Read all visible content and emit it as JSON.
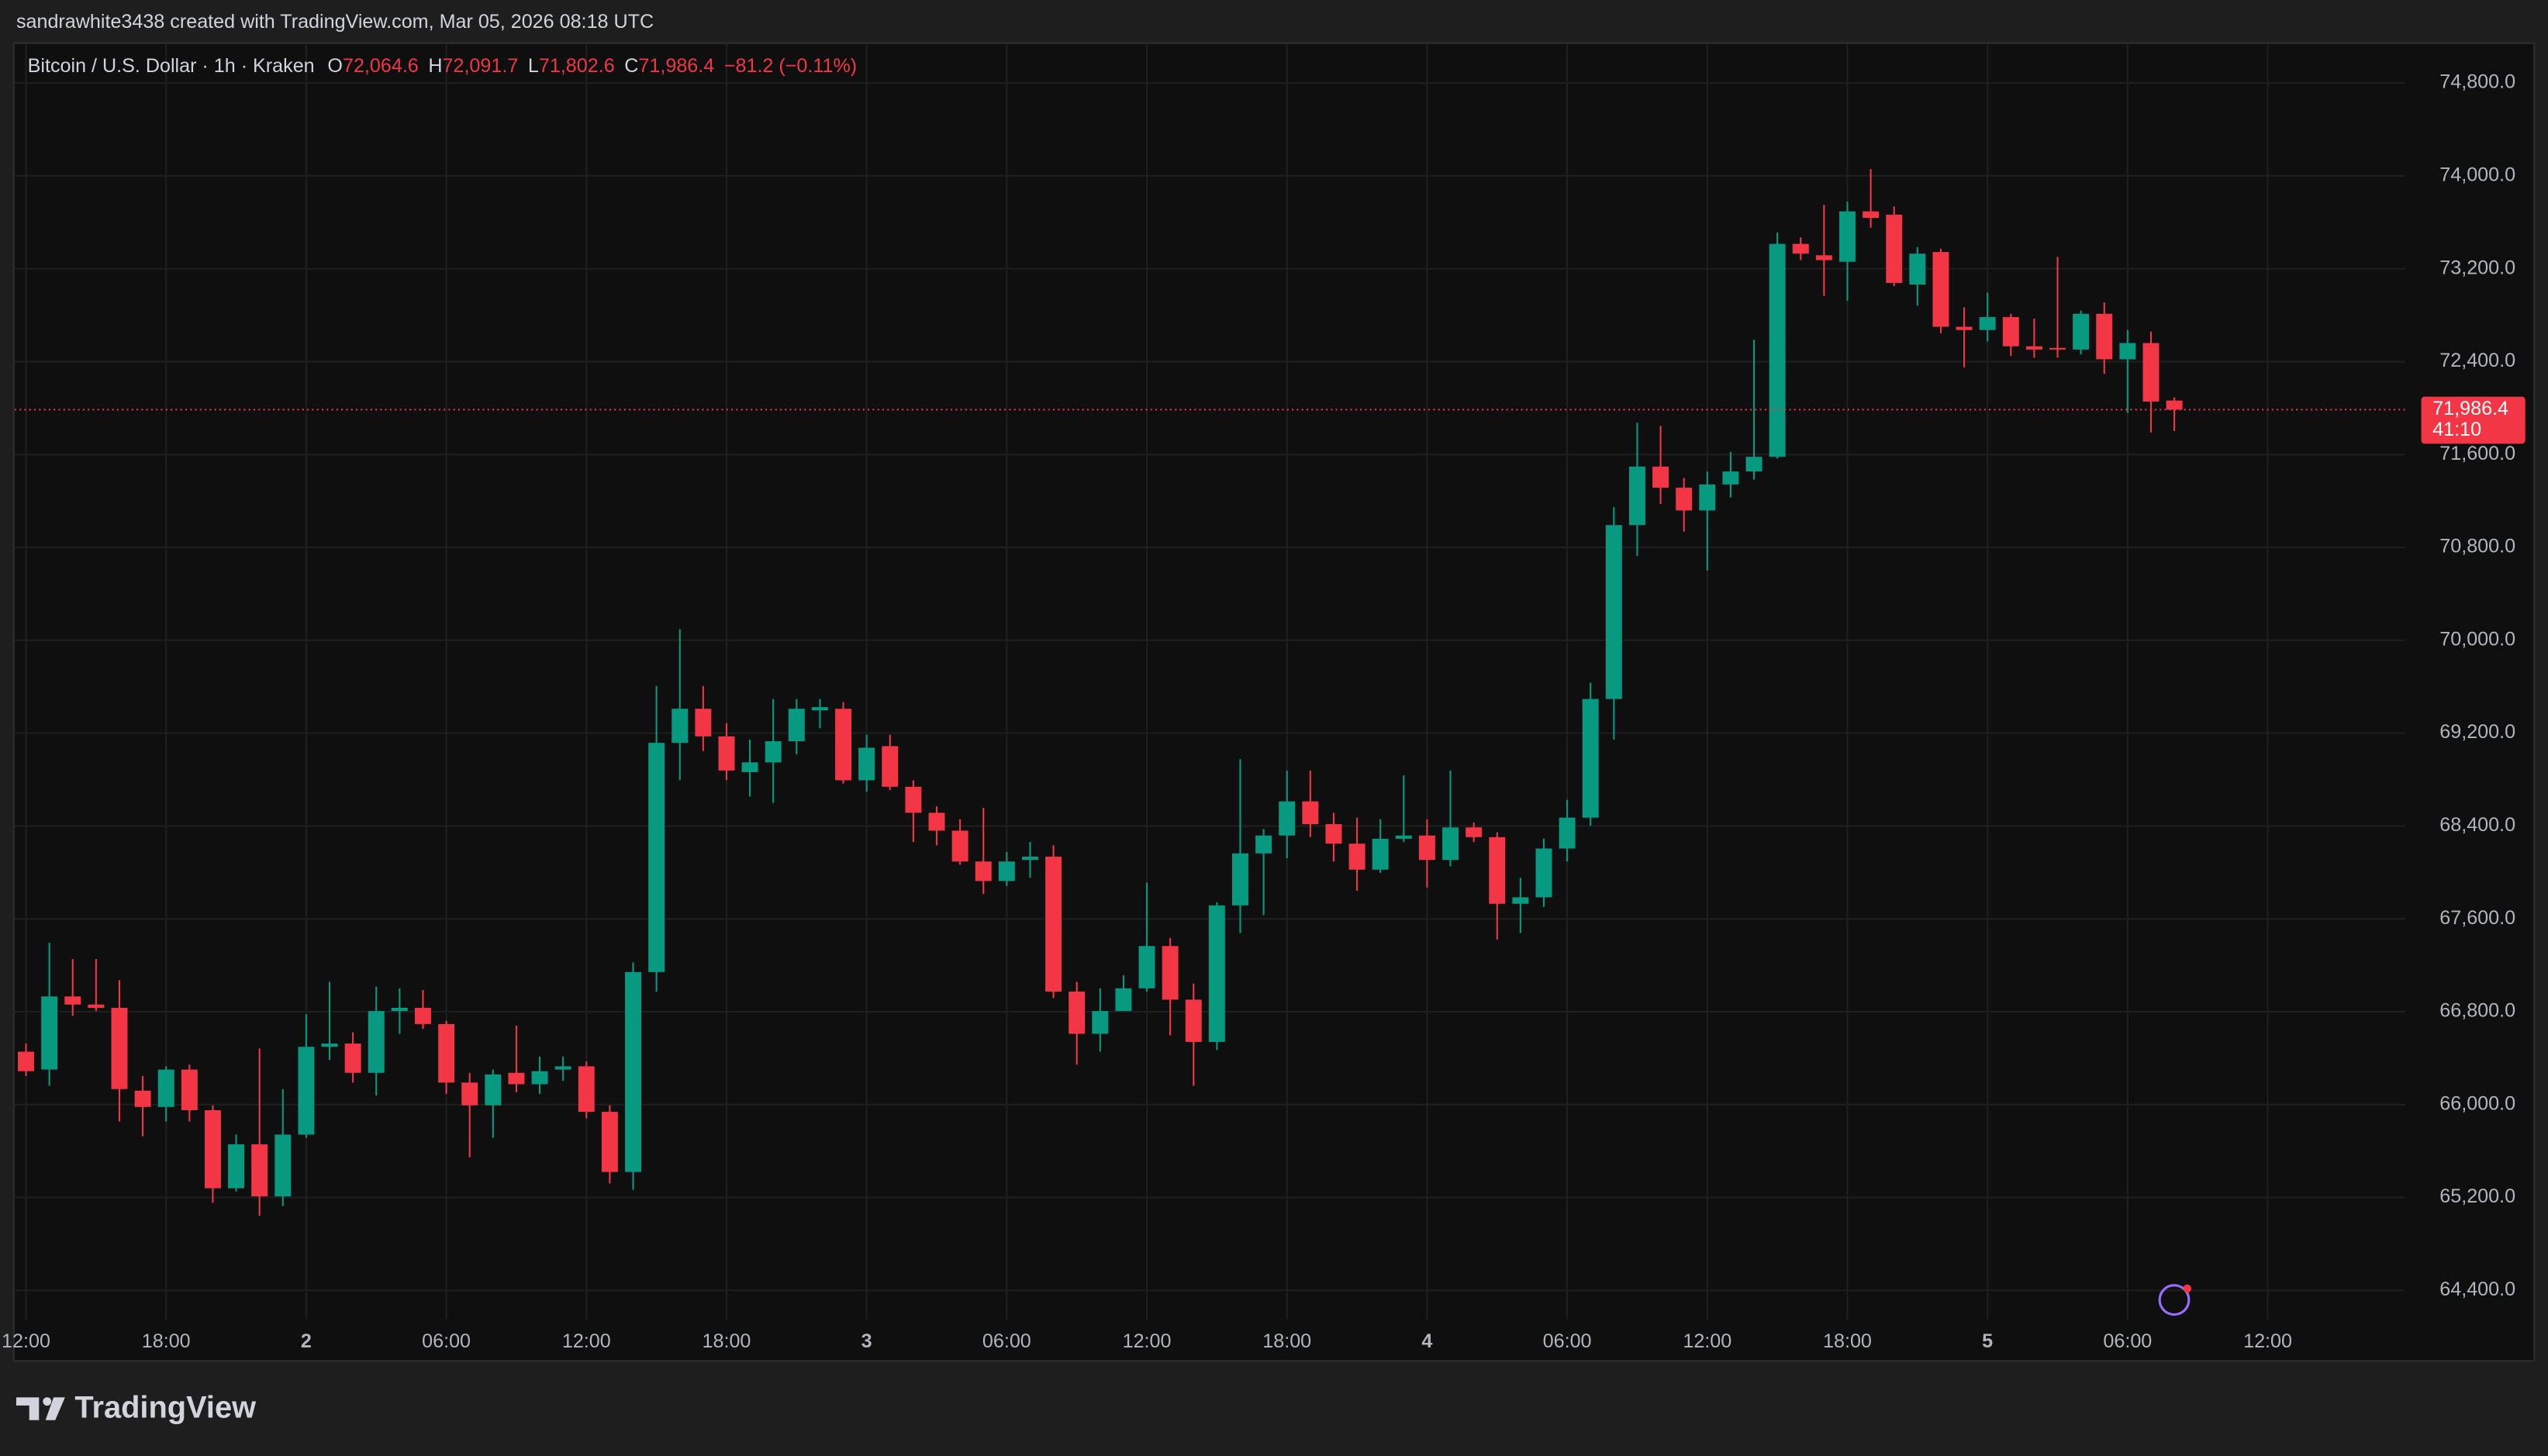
{
  "header": {
    "credit": "sandrawhite3438 created with TradingView.com, Mar 05, 2026 08:18 UTC"
  },
  "legend": {
    "symbol": "Bitcoin / U.S. Dollar · 1h · Kraken",
    "o": "O",
    "open": "72,064.6",
    "h": "H",
    "high": "72,091.7",
    "l": "L",
    "low": "71,802.6",
    "c": "C",
    "close": "71,986.4",
    "change": "−81.2 (−0.11%)"
  },
  "price_tag": {
    "price": "71,986.4",
    "countdown": "41:10"
  },
  "footer": {
    "brand": "TradingView"
  },
  "chart_data": {
    "type": "candlestick",
    "up_color": "#089981",
    "down_color": "#f23645",
    "grid": true,
    "categories": [
      "12:00",
      null,
      null,
      null,
      null,
      null,
      "18:00",
      null,
      null,
      null,
      null,
      null,
      "2",
      null,
      null,
      null,
      null,
      null,
      "06:00",
      null,
      null,
      null,
      null,
      null,
      "12:00",
      null,
      null,
      null,
      null,
      null,
      "18:00",
      null,
      null,
      null,
      null,
      null,
      "3",
      null,
      null,
      null,
      null,
      null,
      "06:00",
      null,
      null,
      null,
      null,
      null,
      "12:00",
      null,
      null,
      null,
      null,
      null,
      "18:00",
      null,
      null,
      null,
      null,
      null,
      "4",
      null,
      null,
      null,
      null,
      null,
      "06:00",
      null,
      null,
      null,
      null,
      null,
      "12:00",
      null,
      null,
      null,
      null,
      null,
      "18:00",
      null,
      null,
      null,
      null,
      null,
      "5",
      null,
      null,
      null,
      null,
      null,
      "06:00",
      null,
      null,
      null,
      null,
      null,
      "12:00"
    ],
    "open": [
      66456,
      66302,
      66932,
      66862,
      66834,
      66120,
      65980,
      66302,
      65952,
      65280,
      65658,
      65210,
      65742,
      66498,
      66526,
      66274,
      66806,
      66834,
      66694,
      66190,
      65994,
      66274,
      66176,
      66302,
      66330,
      65938,
      65420,
      67142,
      69116,
      69410,
      69172,
      68864,
      68948,
      69130,
      69396,
      69410,
      68794,
      69088,
      68738,
      68514,
      68360,
      68094,
      67926,
      68108,
      68136,
      66974,
      66610,
      66806,
      67002,
      67366,
      66904,
      66540,
      67716,
      68164,
      68318,
      68612,
      68416,
      68248,
      68024,
      68290,
      68318,
      68108,
      68388,
      68304,
      67730,
      67786,
      68206,
      68472,
      69494,
      70992,
      71496,
      71314,
      71118,
      71342,
      71454,
      71580,
      73414,
      73316,
      73260,
      73694,
      73666,
      73064,
      73344,
      72700,
      72672,
      72784,
      72532,
      72518,
      72504,
      72812,
      72420,
      72560,
      72064.6,
      null,
      null,
      null,
      null
    ],
    "high": [
      66526,
      67394,
      67254,
      67254,
      67072,
      66246,
      66330,
      66344,
      65994,
      65742,
      66484,
      66134,
      66778,
      67058,
      66624,
      67016,
      67002,
      66988,
      66722,
      66274,
      66302,
      66680,
      66414,
      66414,
      66372,
      65994,
      67226,
      69606,
      70096,
      69606,
      69284,
      69144,
      69494,
      69494,
      69494,
      69466,
      69186,
      69186,
      68794,
      68570,
      68458,
      68556,
      68178,
      68262,
      68234,
      67058,
      67002,
      67114,
      67912,
      67436,
      67044,
      67744,
      68976,
      68374,
      68878,
      68878,
      68514,
      68472,
      68458,
      68836,
      68458,
      68878,
      68430,
      68346,
      67954,
      68290,
      68626,
      69634,
      71146,
      71874,
      71846,
      71398,
      71454,
      71622,
      72588,
      73512,
      73470,
      73750,
      73778,
      74058,
      73736,
      73386,
      73372,
      72868,
      72994,
      72812,
      72770,
      73302,
      72840,
      72910,
      72672,
      72658,
      72091.7,
      null,
      null,
      null,
      null
    ],
    "low": [
      66246,
      66162,
      66764,
      66806,
      65854,
      65728,
      65854,
      65854,
      65154,
      65252,
      65042,
      65126,
      65714,
      66386,
      66190,
      66078,
      66610,
      66652,
      66092,
      65546,
      65714,
      66106,
      66092,
      66204,
      65882,
      65322,
      65266,
      66974,
      68794,
      69046,
      68794,
      68654,
      68598,
      69018,
      69242,
      68766,
      68696,
      68710,
      68262,
      68234,
      68066,
      67814,
      67884,
      67954,
      66918,
      66344,
      66456,
      66806,
      66974,
      66596,
      66162,
      66470,
      67478,
      67632,
      68122,
      68304,
      68094,
      67842,
      67996,
      68262,
      67870,
      68052,
      68262,
      67422,
      67478,
      67702,
      68094,
      68402,
      69144,
      70726,
      71174,
      70936,
      70600,
      71230,
      71384,
      71566,
      73274,
      72966,
      72924,
      73554,
      73050,
      72882,
      72644,
      72350,
      72574,
      72448,
      72434,
      72434,
      72462,
      72294,
      71958,
      71790,
      71802.6,
      null,
      null,
      null,
      null
    ],
    "close": [
      66288,
      66932,
      66862,
      66834,
      66134,
      65980,
      66302,
      65952,
      65280,
      65658,
      65210,
      65742,
      66498,
      66526,
      66274,
      66806,
      66834,
      66694,
      66190,
      65994,
      66260,
      66176,
      66288,
      66330,
      65938,
      65420,
      67142,
      69116,
      69410,
      69172,
      68878,
      68948,
      69130,
      69410,
      69424,
      68794,
      69074,
      68738,
      68514,
      68360,
      68094,
      67926,
      68094,
      68136,
      66974,
      66610,
      66806,
      67002,
      67366,
      66904,
      66540,
      67716,
      68164,
      68318,
      68612,
      68416,
      68248,
      68024,
      68290,
      68318,
      68108,
      68388,
      68304,
      67730,
      67786,
      68206,
      68472,
      69494,
      70992,
      71496,
      71314,
      71118,
      71342,
      71454,
      71580,
      73414,
      73330,
      73274,
      73694,
      73638,
      73078,
      73330,
      72700,
      72672,
      72784,
      72532,
      72504,
      72504,
      72812,
      72420,
      72560,
      72056,
      71986.4,
      null,
      null,
      null,
      null
    ],
    "ylim": [
      64150,
      75150
    ],
    "yticks": [
      {
        "value": 64400,
        "label": "64,400.0"
      },
      {
        "value": 65200,
        "label": "65,200.0"
      },
      {
        "value": 66000,
        "label": "66,000.0"
      },
      {
        "value": 66800,
        "label": "66,800.0"
      },
      {
        "value": 67600,
        "label": "67,600.0"
      },
      {
        "value": 68400,
        "label": "68,400.0"
      },
      {
        "value": 69200,
        "label": "69,200.0"
      },
      {
        "value": 70000,
        "label": "70,000.0"
      },
      {
        "value": 70800,
        "label": "70,800.0"
      },
      {
        "value": 71600,
        "label": "71,600.0"
      },
      {
        "value": 72400,
        "label": "72,400.0"
      },
      {
        "value": 73200,
        "label": "73,200.0"
      },
      {
        "value": 74000,
        "label": "74,000.0"
      },
      {
        "value": 74800,
        "label": "74,800.0"
      }
    ]
  }
}
